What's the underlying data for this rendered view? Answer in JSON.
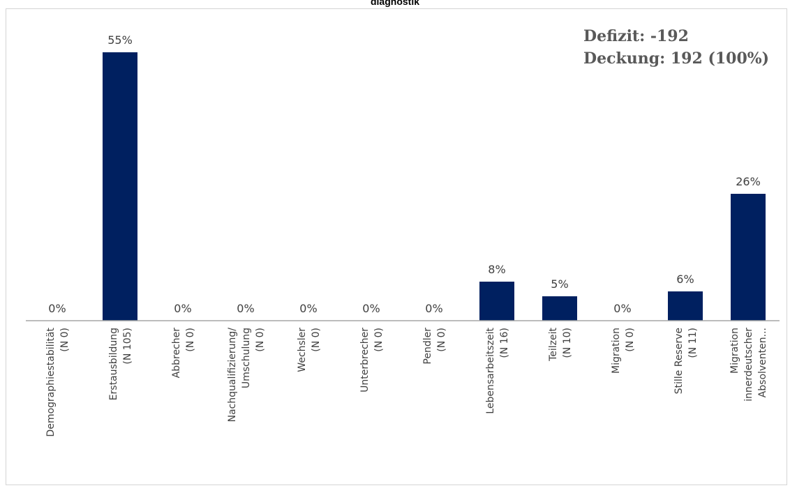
{
  "chart_data": {
    "type": "bar",
    "title": "diagnostik",
    "xlabel": "",
    "ylabel": "",
    "ylim": [
      0,
      60
    ],
    "grid": false,
    "legend": "none",
    "bar_color": "#002060",
    "categories": [
      [
        "Demographiestabilität",
        "(N 0)"
      ],
      [
        "Erstausbildung",
        "(N 105)"
      ],
      [
        "Abbrecher",
        "(N 0)"
      ],
      [
        "Nachqualifizierung/",
        "Umschulung",
        "(N 0)"
      ],
      [
        "Wechsler",
        "(N 0)"
      ],
      [
        "Unterbrecher",
        "(N 0)"
      ],
      [
        "Pendler",
        "(N 0)"
      ],
      [
        "Lebensarbeitszeit",
        "(N 16)"
      ],
      [
        "Teilzeit",
        "(N 10)"
      ],
      [
        "Migration",
        "(N 0)"
      ],
      [
        "Stille Reserve",
        "(N 11)"
      ],
      [
        "Migration",
        "innerdeutscher",
        "Absolventen..."
      ]
    ],
    "values": [
      0,
      55,
      0,
      0,
      0,
      0,
      0,
      8,
      5,
      0,
      6,
      26
    ],
    "data_labels": [
      "0%",
      "55%",
      "0%",
      "0%",
      "0%",
      "0%",
      "0%",
      "8%",
      "5%",
      "0%",
      "6%",
      "26%"
    ],
    "annotations": [
      "Defizit: -192",
      "Deckung: 192 (100%)"
    ]
  }
}
